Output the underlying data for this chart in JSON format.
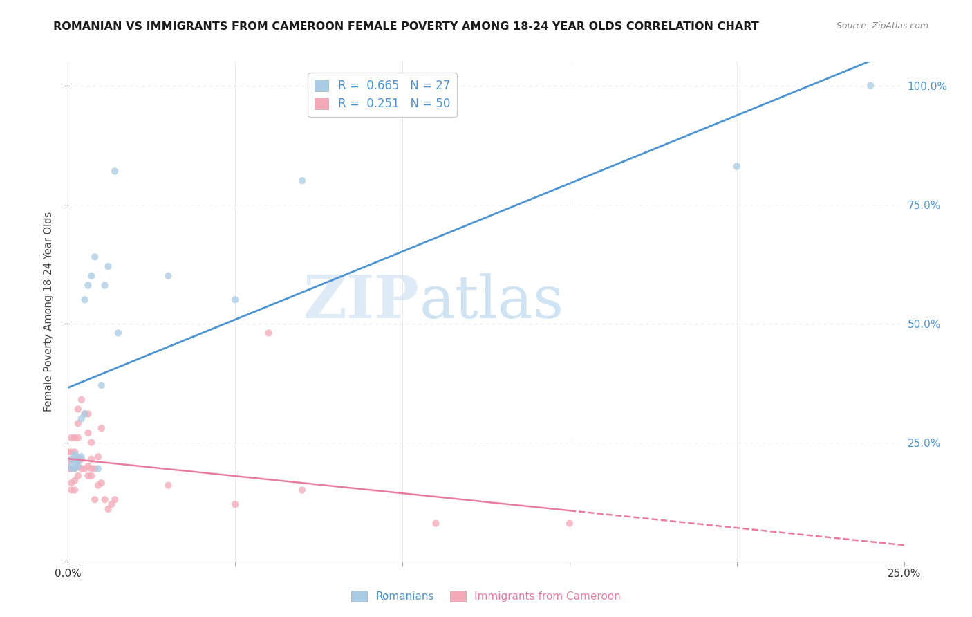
{
  "title": "ROMANIAN VS IMMIGRANTS FROM CAMEROON FEMALE POVERTY AMONG 18-24 YEAR OLDS CORRELATION CHART",
  "source": "Source: ZipAtlas.com",
  "ylabel": "Female Poverty Among 18-24 Year Olds",
  "legend_romanian_r": "0.665",
  "legend_romanian_n": "27",
  "legend_cameroon_r": "0.251",
  "legend_cameroon_n": "50",
  "color_romanian": "#a8cce4",
  "color_cameroon": "#f4a9b8",
  "color_romanian_line": "#4d94d0",
  "color_cameroon_line": "#e87ca0",
  "watermark_zip": "ZIP",
  "watermark_atlas": "atlas",
  "romanian_scatter_x": [
    0.001,
    0.001,
    0.001,
    0.002,
    0.002,
    0.002,
    0.003,
    0.003,
    0.003,
    0.004,
    0.004,
    0.005,
    0.005,
    0.006,
    0.007,
    0.008,
    0.009,
    0.01,
    0.011,
    0.012,
    0.014,
    0.015,
    0.03,
    0.05,
    0.07,
    0.2,
    0.24
  ],
  "romanian_scatter_y": [
    0.195,
    0.2,
    0.215,
    0.195,
    0.21,
    0.225,
    0.2,
    0.21,
    0.22,
    0.22,
    0.3,
    0.31,
    0.55,
    0.58,
    0.6,
    0.64,
    0.195,
    0.37,
    0.58,
    0.62,
    0.82,
    0.48,
    0.6,
    0.55,
    0.8,
    0.83,
    1.0
  ],
  "cameroon_scatter_x": [
    0.0,
    0.0,
    0.0,
    0.001,
    0.001,
    0.001,
    0.001,
    0.001,
    0.001,
    0.002,
    0.002,
    0.002,
    0.002,
    0.002,
    0.002,
    0.003,
    0.003,
    0.003,
    0.003,
    0.003,
    0.003,
    0.004,
    0.004,
    0.004,
    0.005,
    0.005,
    0.006,
    0.006,
    0.006,
    0.006,
    0.007,
    0.007,
    0.007,
    0.007,
    0.008,
    0.008,
    0.009,
    0.009,
    0.01,
    0.01,
    0.011,
    0.012,
    0.013,
    0.014,
    0.03,
    0.05,
    0.06,
    0.07,
    0.11,
    0.15
  ],
  "cameroon_scatter_y": [
    0.195,
    0.21,
    0.23,
    0.15,
    0.165,
    0.195,
    0.215,
    0.23,
    0.26,
    0.15,
    0.17,
    0.195,
    0.215,
    0.23,
    0.26,
    0.18,
    0.2,
    0.215,
    0.26,
    0.29,
    0.32,
    0.195,
    0.215,
    0.34,
    0.195,
    0.31,
    0.18,
    0.2,
    0.27,
    0.31,
    0.18,
    0.195,
    0.215,
    0.25,
    0.13,
    0.195,
    0.16,
    0.22,
    0.165,
    0.28,
    0.13,
    0.11,
    0.12,
    0.13,
    0.16,
    0.12,
    0.48,
    0.15,
    0.08,
    0.08
  ],
  "xlim": [
    0.0,
    0.25
  ],
  "ylim": [
    0.0,
    1.05
  ],
  "background_color": "#ffffff",
  "grid_color": "#e8e8e8"
}
